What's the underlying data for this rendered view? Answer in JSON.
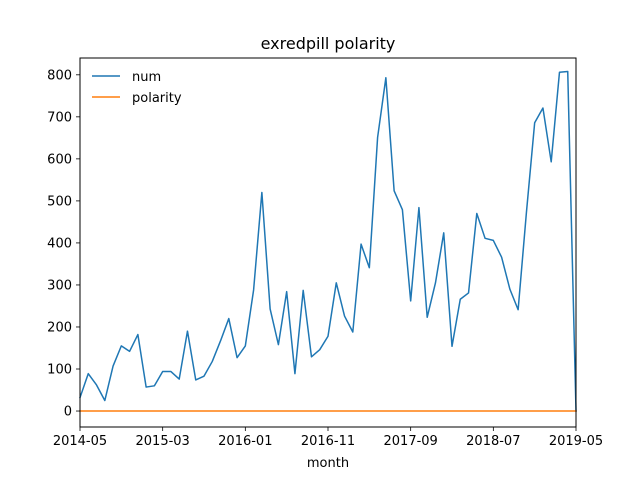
{
  "chart_data": {
    "type": "line",
    "title": "exredpill polarity",
    "xlabel": "month",
    "ylabel": "",
    "x_ticks": [
      "2014-05",
      "2015-03",
      "2016-01",
      "2016-11",
      "2017-09",
      "2018-07",
      "2019-05"
    ],
    "x_range": [
      "2014-05",
      "2019-05"
    ],
    "ylim": [
      -38,
      840
    ],
    "y_ticks": [
      0,
      100,
      200,
      300,
      400,
      500,
      600,
      700,
      800
    ],
    "grid": false,
    "legend_position": "top-left",
    "x": [
      "2014-05",
      "2014-06",
      "2014-07",
      "2014-08",
      "2014-09",
      "2014-10",
      "2014-11",
      "2014-12",
      "2015-01",
      "2015-02",
      "2015-03",
      "2015-04",
      "2015-05",
      "2015-06",
      "2015-07",
      "2015-08",
      "2015-09",
      "2015-10",
      "2015-11",
      "2015-12",
      "2016-01",
      "2016-02",
      "2016-03",
      "2016-04",
      "2016-05",
      "2016-06",
      "2016-07",
      "2016-08",
      "2016-09",
      "2016-10",
      "2016-11",
      "2016-12",
      "2017-01",
      "2017-02",
      "2017-03",
      "2017-04",
      "2017-05",
      "2017-06",
      "2017-07",
      "2017-08",
      "2017-09",
      "2017-10",
      "2017-11",
      "2017-12",
      "2018-01",
      "2018-02",
      "2018-03",
      "2018-04",
      "2018-05",
      "2018-06",
      "2018-07",
      "2018-08",
      "2018-09",
      "2018-10",
      "2018-11",
      "2018-12",
      "2019-01",
      "2019-02",
      "2019-03",
      "2019-04",
      "2019-05"
    ],
    "series": [
      {
        "name": "num",
        "color": "#1f77b4",
        "values": [
          32,
          89,
          62,
          25,
          107,
          155,
          142,
          182,
          57,
          60,
          94,
          94,
          76,
          190,
          74,
          83,
          118,
          167,
          220,
          127,
          155,
          288,
          520,
          243,
          158,
          284,
          89,
          287,
          129,
          146,
          178,
          305,
          226,
          188,
          397,
          341,
          651,
          793,
          524,
          479,
          262,
          484,
          223,
          305,
          424,
          154,
          266,
          281,
          470,
          411,
          406,
          366,
          290,
          241,
          472,
          686,
          721,
          593,
          806,
          808,
          0
        ]
      },
      {
        "name": "polarity",
        "color": "#ff7f0e",
        "values": [
          0,
          0,
          0,
          0,
          0,
          0,
          0,
          0,
          0,
          0,
          0,
          0,
          0,
          0,
          0,
          0,
          0,
          0,
          0,
          0,
          0,
          0,
          0,
          0,
          0,
          0,
          0,
          0,
          0,
          0,
          0,
          0,
          0,
          0,
          0,
          0,
          0,
          0,
          0,
          0,
          0,
          0,
          0,
          0,
          0,
          0,
          0,
          0,
          0,
          0,
          0,
          0,
          0,
          0,
          0,
          0,
          0,
          0,
          0,
          0,
          0
        ]
      }
    ]
  }
}
